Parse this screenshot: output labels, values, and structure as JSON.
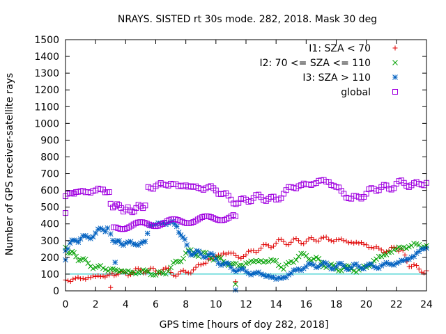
{
  "chart_data": {
    "type": "scatter",
    "title": "NRAYS. SISTED rt 30s mode. 282, 2018. Mask 30 deg",
    "xlabel": "GPS time [hours of doy 282, 2018]",
    "ylabel": "Number of GPS receiver-satellite rays",
    "xlim": [
      0,
      24
    ],
    "ylim": [
      0,
      1500
    ],
    "xticks": [
      0,
      2,
      4,
      6,
      8,
      10,
      12,
      14,
      16,
      18,
      20,
      22,
      24
    ],
    "yticks": [
      0,
      100,
      200,
      300,
      400,
      500,
      600,
      700,
      800,
      900,
      1000,
      1100,
      1200,
      1300,
      1400,
      1500
    ],
    "reference_line": {
      "y": 100,
      "color": "#00c0c0"
    },
    "legend_position": "top-right",
    "series": [
      {
        "name": "I1: SZA < 70",
        "color": "#e00000",
        "marker": "+",
        "points": [
          [
            0,
            65
          ],
          [
            0.5,
            70
          ],
          [
            1,
            72
          ],
          [
            1.5,
            80
          ],
          [
            2,
            85
          ],
          [
            2.5,
            88
          ],
          [
            2.9,
            95
          ],
          [
            3.1,
            105
          ],
          [
            3.5,
            100
          ],
          [
            4,
            105
          ],
          [
            4.5,
            110
          ],
          [
            5,
            125
          ],
          [
            5.5,
            120
          ],
          [
            6,
            118
          ],
          [
            6.5,
            128
          ],
          [
            7,
            110
          ],
          [
            7.5,
            100
          ],
          [
            8,
            112
          ],
          [
            8.5,
            125
          ],
          [
            9,
            155
          ],
          [
            9.5,
            185
          ],
          [
            10,
            205
          ],
          [
            10.5,
            225
          ],
          [
            11,
            225
          ],
          [
            11.5,
            200
          ],
          [
            12,
            215
          ],
          [
            12.5,
            240
          ],
          [
            13,
            255
          ],
          [
            13.5,
            270
          ],
          [
            14,
            285
          ],
          [
            14.5,
            295
          ],
          [
            15,
            290
          ],
          [
            15.5,
            300
          ],
          [
            16,
            295
          ],
          [
            16.5,
            305
          ],
          [
            17,
            315
          ],
          [
            17.5,
            305
          ],
          [
            18,
            305
          ],
          [
            18.5,
            300
          ],
          [
            19,
            290
          ],
          [
            19.5,
            285
          ],
          [
            20,
            275
          ],
          [
            20.5,
            255
          ],
          [
            21,
            245
          ],
          [
            21.5,
            240
          ],
          [
            22,
            255
          ],
          [
            22.3,
            250
          ],
          [
            22.7,
            175
          ],
          [
            23,
            145
          ],
          [
            23.5,
            130
          ],
          [
            24,
            120
          ],
          [
            3,
            20
          ],
          [
            11.3,
            55
          ]
        ]
      },
      {
        "name": "I2: 70 <= SZA <= 110",
        "color": "#00a000",
        "marker": "x",
        "points": [
          [
            0,
            260
          ],
          [
            0.3,
            225
          ],
          [
            0.7,
            205
          ],
          [
            1,
            185
          ],
          [
            1.5,
            165
          ],
          [
            2,
            140
          ],
          [
            2.5,
            135
          ],
          [
            3,
            130
          ],
          [
            3.3,
            125
          ],
          [
            3.7,
            120
          ],
          [
            4,
            115
          ],
          [
            4.5,
            110
          ],
          [
            5,
            112
          ],
          [
            5.5,
            118
          ],
          [
            6,
            95
          ],
          [
            6.5,
            105
          ],
          [
            7,
            140
          ],
          [
            7.5,
            175
          ],
          [
            8,
            225
          ],
          [
            8.5,
            230
          ],
          [
            9,
            220
          ],
          [
            9.5,
            210
          ],
          [
            10,
            195
          ],
          [
            10.5,
            175
          ],
          [
            11,
            160
          ],
          [
            11.5,
            150
          ],
          [
            12,
            165
          ],
          [
            12.5,
            175
          ],
          [
            13,
            180
          ],
          [
            13.5,
            175
          ],
          [
            14,
            180
          ],
          [
            14.5,
            130
          ],
          [
            15,
            175
          ],
          [
            15.5,
            205
          ],
          [
            16,
            210
          ],
          [
            16.5,
            190
          ],
          [
            17,
            170
          ],
          [
            17.5,
            150
          ],
          [
            18,
            130
          ],
          [
            18.5,
            140
          ],
          [
            19,
            130
          ],
          [
            19.5,
            125
          ],
          [
            20,
            140
          ],
          [
            20.5,
            180
          ],
          [
            21,
            205
          ],
          [
            21.5,
            230
          ],
          [
            22,
            250
          ],
          [
            22.5,
            260
          ],
          [
            23,
            270
          ],
          [
            23.5,
            275
          ],
          [
            24,
            270
          ],
          [
            11.3,
            40
          ]
        ]
      },
      {
        "name": "I3: SZA > 110",
        "color": "#0060c0",
        "marker": "*",
        "points": [
          [
            0,
            240
          ],
          [
            0.3,
            285
          ],
          [
            0.7,
            300
          ],
          [
            1,
            310
          ],
          [
            1.5,
            320
          ],
          [
            2,
            345
          ],
          [
            2.5,
            365
          ],
          [
            2.8,
            375
          ],
          [
            3,
            340
          ],
          [
            3.3,
            290
          ],
          [
            3.7,
            280
          ],
          [
            4,
            285
          ],
          [
            4.5,
            280
          ],
          [
            5,
            285
          ],
          [
            5.3,
            295
          ],
          [
            5.6,
            390
          ],
          [
            6,
            395
          ],
          [
            6.5,
            405
          ],
          [
            7,
            410
          ],
          [
            7.4,
            385
          ],
          [
            7.8,
            320
          ],
          [
            8.2,
            235
          ],
          [
            8.6,
            225
          ],
          [
            9,
            220
          ],
          [
            9.5,
            215
          ],
          [
            10,
            190
          ],
          [
            10.5,
            160
          ],
          [
            11,
            140
          ],
          [
            11.5,
            125
          ],
          [
            12,
            115
          ],
          [
            12.5,
            105
          ],
          [
            13,
            100
          ],
          [
            13.5,
            90
          ],
          [
            14,
            70
          ],
          [
            14.5,
            80
          ],
          [
            15,
            105
          ],
          [
            15.5,
            130
          ],
          [
            16,
            145
          ],
          [
            16.5,
            155
          ],
          [
            17,
            155
          ],
          [
            17.5,
            150
          ],
          [
            18,
            145
          ],
          [
            18.5,
            150
          ],
          [
            19,
            140
          ],
          [
            19.5,
            145
          ],
          [
            20,
            150
          ],
          [
            20.5,
            145
          ],
          [
            21,
            150
          ],
          [
            21.5,
            160
          ],
          [
            22,
            165
          ],
          [
            22.5,
            180
          ],
          [
            23,
            200
          ],
          [
            23.5,
            235
          ],
          [
            24,
            255
          ],
          [
            3.3,
            170
          ],
          [
            11.3,
            5
          ],
          [
            0,
            185
          ]
        ]
      },
      {
        "name": "global",
        "color": "#a000e0",
        "marker": "square",
        "points": [
          [
            0,
            565
          ],
          [
            0.3,
            585
          ],
          [
            0.7,
            590
          ],
          [
            1,
            595
          ],
          [
            1.5,
            590
          ],
          [
            2,
            600
          ],
          [
            2.5,
            605
          ],
          [
            2.9,
            590
          ],
          [
            3,
            520
          ],
          [
            3.3,
            505
          ],
          [
            3.7,
            495
          ],
          [
            4,
            485
          ],
          [
            4.3,
            480
          ],
          [
            4.7,
            495
          ],
          [
            5,
            505
          ],
          [
            5.3,
            510
          ],
          [
            5.5,
            620
          ],
          [
            6,
            625
          ],
          [
            6.5,
            635
          ],
          [
            7,
            640
          ],
          [
            7.5,
            625
          ],
          [
            8,
            630
          ],
          [
            8.5,
            620
          ],
          [
            9,
            610
          ],
          [
            9.5,
            620
          ],
          [
            10,
            600
          ],
          [
            10.5,
            580
          ],
          [
            11,
            545
          ],
          [
            11.5,
            525
          ],
          [
            12,
            545
          ],
          [
            12.5,
            555
          ],
          [
            13,
            560
          ],
          [
            13.5,
            550
          ],
          [
            14,
            545
          ],
          [
            14.5,
            580
          ],
          [
            15,
            620
          ],
          [
            15.5,
            625
          ],
          [
            16,
            635
          ],
          [
            16.5,
            640
          ],
          [
            17,
            660
          ],
          [
            17.5,
            650
          ],
          [
            18,
            620
          ],
          [
            18.5,
            580
          ],
          [
            19,
            550
          ],
          [
            19.5,
            560
          ],
          [
            20,
            580
          ],
          [
            20.5,
            610
          ],
          [
            21,
            620
          ],
          [
            21.5,
            610
          ],
          [
            22,
            640
          ],
          [
            22.5,
            645
          ],
          [
            23,
            630
          ],
          [
            23.5,
            640
          ],
          [
            24,
            645
          ],
          [
            0,
            465
          ],
          [
            3.2,
            380
          ],
          [
            11.3,
            445
          ]
        ]
      }
    ]
  }
}
